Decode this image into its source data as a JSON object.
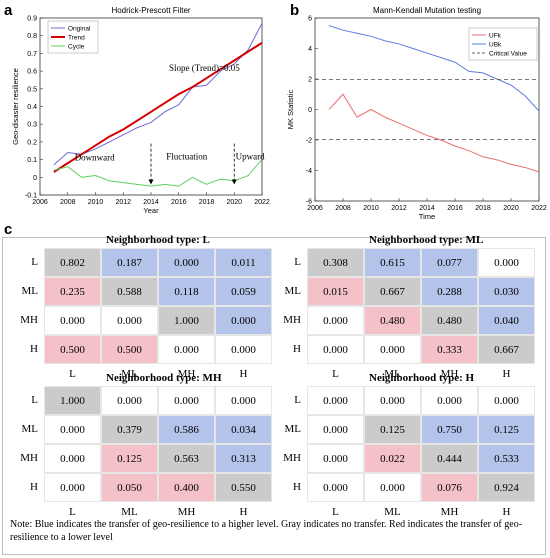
{
  "panels": {
    "a": "a",
    "b": "b",
    "c": "c"
  },
  "colors": {
    "blue": "#b3c3ea",
    "gray": "#cbcbcb",
    "red": "#f4c1c8",
    "white": "#ffffff"
  },
  "chart_data": [
    {
      "type": "line",
      "title": "Hodrick-Prescott Filter",
      "xlabel": "Year",
      "ylabel": "Geo-disaster resilience",
      "xlim": [
        2006,
        2022
      ],
      "ylim": [
        -0.1,
        0.9
      ],
      "xticks": [
        2006,
        2008,
        2010,
        2012,
        2014,
        2016,
        2018,
        2020,
        2022
      ],
      "yticks": [
        -0.1,
        0,
        0.1,
        0.2,
        0.3,
        0.4,
        0.5,
        0.6,
        0.7,
        0.8,
        0.9
      ],
      "x": [
        2007,
        2008,
        2009,
        2010,
        2011,
        2012,
        2013,
        2014,
        2015,
        2016,
        2017,
        2018,
        2019,
        2020,
        2021,
        2022
      ],
      "series": [
        {
          "name": "Original",
          "color": "#6b6bd6",
          "values": [
            0.07,
            0.14,
            0.13,
            0.16,
            0.2,
            0.24,
            0.28,
            0.31,
            0.37,
            0.41,
            0.51,
            0.52,
            0.6,
            0.64,
            0.72,
            0.87
          ]
        },
        {
          "name": "Trend",
          "color": "#d40000",
          "values": [
            0.03,
            0.08,
            0.13,
            0.18,
            0.23,
            0.27,
            0.32,
            0.37,
            0.42,
            0.47,
            0.51,
            0.56,
            0.61,
            0.66,
            0.71,
            0.76
          ]
        },
        {
          "name": "Cycle",
          "color": "#5fd15f",
          "values": [
            0.04,
            0.06,
            0.0,
            0.01,
            -0.02,
            -0.03,
            -0.04,
            -0.05,
            -0.04,
            -0.05,
            0.0,
            -0.04,
            -0.01,
            -0.02,
            0.01,
            0.1
          ]
        }
      ],
      "annotations": {
        "slope": "Slope (Trend)=0.05",
        "downward": "Downward",
        "fluctuation": "Fluctuation",
        "upward": "Upward",
        "arrow_years": [
          2014,
          2020
        ]
      },
      "legend": "top-left"
    },
    {
      "type": "line",
      "title": "Mann-Kendall Mutation testing",
      "xlabel": "Time",
      "ylabel": "MK Statistic",
      "xlim": [
        2006,
        2022
      ],
      "ylim": [
        -6,
        6
      ],
      "xticks": [
        2006,
        2008,
        2010,
        2012,
        2014,
        2016,
        2018,
        2020,
        2022
      ],
      "yticks": [
        -6,
        -4,
        -2,
        0,
        2,
        4,
        6
      ],
      "x": [
        2007,
        2008,
        2009,
        2010,
        2011,
        2012,
        2013,
        2014,
        2015,
        2016,
        2017,
        2018,
        2019,
        2020,
        2021,
        2022
      ],
      "series": [
        {
          "name": "UFk",
          "color": "#e87070",
          "values": [
            0.0,
            1.0,
            -0.5,
            0.0,
            -0.5,
            -0.9,
            -1.3,
            -1.7,
            -2.0,
            -2.4,
            -2.7,
            -3.1,
            -3.3,
            -3.6,
            -3.8,
            -4.1
          ]
        },
        {
          "name": "UBk",
          "color": "#5f7ee0",
          "values": [
            5.5,
            5.2,
            5.0,
            4.8,
            4.5,
            4.3,
            4.0,
            3.7,
            3.4,
            3.1,
            2.5,
            2.4,
            2.0,
            1.6,
            0.9,
            -0.1
          ]
        },
        {
          "name": "Critical Value",
          "color": "#666666",
          "dashed": true,
          "values_pair": [
            1.96,
            -1.96
          ]
        }
      ],
      "legend": "top-right"
    }
  ],
  "matrices": {
    "row_labels": [
      "L",
      "ML",
      "MH",
      "H"
    ],
    "col_labels": [
      "L",
      "ML",
      "MH",
      "H"
    ],
    "items": [
      {
        "title": "Neighborhood type: L",
        "values": [
          [
            "0.802",
            "0.187",
            "0.000",
            "0.011"
          ],
          [
            "0.235",
            "0.588",
            "0.118",
            "0.059"
          ],
          [
            "0.000",
            "0.000",
            "1.000",
            "0.000"
          ],
          [
            "0.500",
            "0.500",
            "0.000",
            "0.000"
          ]
        ],
        "colors": [
          [
            "g",
            "b",
            "b",
            "b"
          ],
          [
            "r",
            "g",
            "b",
            "b"
          ],
          [
            "w",
            "w",
            "g",
            "b"
          ],
          [
            "r",
            "r",
            "w",
            "w"
          ]
        ]
      },
      {
        "title": "Neighborhood type: ML",
        "values": [
          [
            "0.308",
            "0.615",
            "0.077",
            "0.000"
          ],
          [
            "0.015",
            "0.667",
            "0.288",
            "0.030"
          ],
          [
            "0.000",
            "0.480",
            "0.480",
            "0.040"
          ],
          [
            "0.000",
            "0.000",
            "0.333",
            "0.667"
          ]
        ],
        "colors": [
          [
            "g",
            "b",
            "b",
            "w"
          ],
          [
            "r",
            "g",
            "b",
            "b"
          ],
          [
            "w",
            "r",
            "g",
            "b"
          ],
          [
            "w",
            "w",
            "r",
            "g"
          ]
        ]
      },
      {
        "title": "Neighborhood type: MH",
        "values": [
          [
            "1.000",
            "0.000",
            "0.000",
            "0.000"
          ],
          [
            "0.000",
            "0.379",
            "0.586",
            "0.034"
          ],
          [
            "0.000",
            "0.125",
            "0.563",
            "0.313"
          ],
          [
            "0.000",
            "0.050",
            "0.400",
            "0.550"
          ]
        ],
        "colors": [
          [
            "g",
            "w",
            "w",
            "w"
          ],
          [
            "w",
            "g",
            "b",
            "b"
          ],
          [
            "w",
            "r",
            "g",
            "b"
          ],
          [
            "w",
            "r",
            "r",
            "g"
          ]
        ]
      },
      {
        "title": "Neighborhood type: H",
        "values": [
          [
            "0.000",
            "0.000",
            "0.000",
            "0.000"
          ],
          [
            "0.000",
            "0.125",
            "0.750",
            "0.125"
          ],
          [
            "0.000",
            "0.022",
            "0.444",
            "0.533"
          ],
          [
            "0.000",
            "0.000",
            "0.076",
            "0.924"
          ]
        ],
        "colors": [
          [
            "w",
            "w",
            "w",
            "w"
          ],
          [
            "w",
            "g",
            "b",
            "b"
          ],
          [
            "w",
            "r",
            "g",
            "b"
          ],
          [
            "w",
            "w",
            "r",
            "g"
          ]
        ]
      }
    ]
  },
  "note": "Note: Blue indicates the transfer of geo-resilience to a higher level. Gray indicates no transfer. Red indicates the transfer of geo-resilience to a lower level"
}
